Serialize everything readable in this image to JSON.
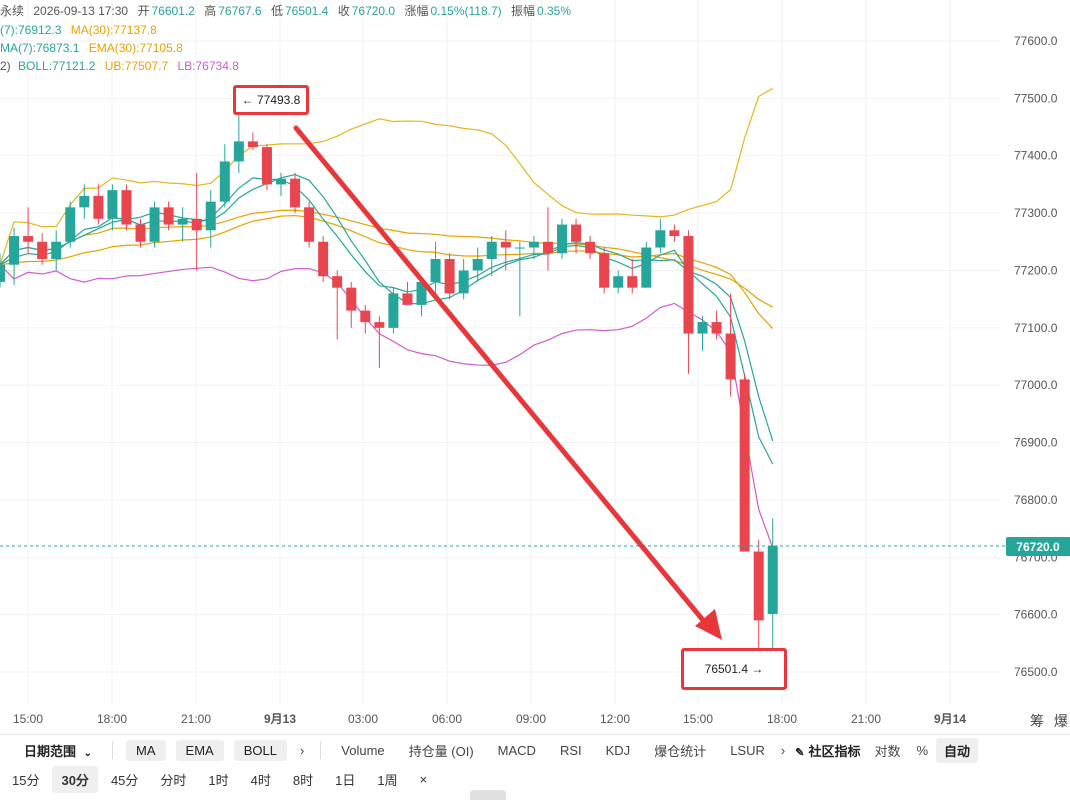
{
  "header": {
    "symbol_suffix": "永续",
    "datetime": "2026-09-13 17:30",
    "open_label": "开",
    "open": "76601.2",
    "high_label": "高",
    "high": "76767.6",
    "low_label": "低",
    "low": "76501.4",
    "close_label": "收",
    "close": "76720.0",
    "change_label": "涨幅",
    "change": "0.15%(118.7)",
    "amplitude_label": "振幅",
    "amplitude": "0.35%"
  },
  "indicators_row1": {
    "ma7": "(7):76912.3",
    "ma30": "MA(30):77137.8"
  },
  "indicators_row2": {
    "ema7": "MA(7):76873.1",
    "ema30": "EMA(30):77105.8"
  },
  "indicators_row3": {
    "prefix": "2)",
    "boll": "BOLL:77121.2",
    "ub": "UB:77507.7",
    "lb": "LB:76734.8"
  },
  "colors": {
    "up": "#26a69a",
    "down": "#e8454f",
    "ma7": "#26a69a",
    "ma30": "#e8a100",
    "boll_band": "#e6b41e",
    "lb": "#d05ad0",
    "annotation": "#e8373a"
  },
  "price_axis": [
    "77600.0",
    "77500.0",
    "77400.0",
    "77300.0",
    "77200.0",
    "77100.0",
    "77000.0",
    "76900.0",
    "76800.0",
    "76700.0",
    "76600.0",
    "76500.0"
  ],
  "current_price": "76720.0",
  "time_axis": [
    "15:00",
    "18:00",
    "21:00",
    "9月13",
    "03:00",
    "06:00",
    "09:00",
    "12:00",
    "15:00",
    "18:00",
    "21:00",
    "9月14"
  ],
  "right_corner": [
    "筹",
    "爆"
  ],
  "annotations": {
    "high_marker": "← 77493.8",
    "low_marker": "76501.4 →"
  },
  "toolbar": {
    "date_range": "日期范围",
    "pills": [
      "MA",
      "EMA",
      "BOLL"
    ],
    "more": "›",
    "items": [
      "Volume",
      "持仓量 (OI)",
      "MACD",
      "RSI",
      "KDJ",
      "爆仓统计",
      "LSUR"
    ],
    "more2": "›",
    "community": "社区指标",
    "log": "对数",
    "percent": "%",
    "auto": "自动"
  },
  "intervals": [
    "15分",
    "30分",
    "45分",
    "分时",
    "1时",
    "4时",
    "8时",
    "1日",
    "1周"
  ],
  "active_interval": "30分",
  "close_symbol": "×",
  "chart_data": {
    "type": "candlestick",
    "ylim": [
      76450,
      77650
    ],
    "candles": [
      {
        "o": 77180,
        "h": 77230,
        "l": 77170,
        "c": 77210
      },
      {
        "o": 77210,
        "h": 77275,
        "l": 77175,
        "c": 77260
      },
      {
        "o": 77260,
        "h": 77310,
        "l": 77230,
        "c": 77250
      },
      {
        "o": 77250,
        "h": 77265,
        "l": 77210,
        "c": 77220
      },
      {
        "o": 77220,
        "h": 77270,
        "l": 77200,
        "c": 77250
      },
      {
        "o": 77250,
        "h": 77320,
        "l": 77240,
        "c": 77310
      },
      {
        "o": 77310,
        "h": 77350,
        "l": 77290,
        "c": 77330
      },
      {
        "o": 77330,
        "h": 77350,
        "l": 77280,
        "c": 77290
      },
      {
        "o": 77290,
        "h": 77350,
        "l": 77270,
        "c": 77340
      },
      {
        "o": 77340,
        "h": 77350,
        "l": 77270,
        "c": 77280
      },
      {
        "o": 77280,
        "h": 77290,
        "l": 77240,
        "c": 77250
      },
      {
        "o": 77250,
        "h": 77320,
        "l": 77240,
        "c": 77310
      },
      {
        "o": 77310,
        "h": 77320,
        "l": 77270,
        "c": 77280
      },
      {
        "o": 77280,
        "h": 77310,
        "l": 77250,
        "c": 77290
      },
      {
        "o": 77290,
        "h": 77370,
        "l": 77200,
        "c": 77270
      },
      {
        "o": 77270,
        "h": 77340,
        "l": 77240,
        "c": 77320
      },
      {
        "o": 77320,
        "h": 77420,
        "l": 77310,
        "c": 77390
      },
      {
        "o": 77390,
        "h": 77493.8,
        "l": 77370,
        "c": 77425
      },
      {
        "o": 77425,
        "h": 77440,
        "l": 77410,
        "c": 77415
      },
      {
        "o": 77415,
        "h": 77420,
        "l": 77340,
        "c": 77350
      },
      {
        "o": 77350,
        "h": 77370,
        "l": 77330,
        "c": 77360
      },
      {
        "o": 77360,
        "h": 77370,
        "l": 77300,
        "c": 77310
      },
      {
        "o": 77310,
        "h": 77320,
        "l": 77240,
        "c": 77250
      },
      {
        "o": 77250,
        "h": 77260,
        "l": 77180,
        "c": 77190
      },
      {
        "o": 77190,
        "h": 77200,
        "l": 77080,
        "c": 77170
      },
      {
        "o": 77170,
        "h": 77180,
        "l": 77100,
        "c": 77130
      },
      {
        "o": 77130,
        "h": 77140,
        "l": 77090,
        "c": 77110
      },
      {
        "o": 77110,
        "h": 77120,
        "l": 77030,
        "c": 77100
      },
      {
        "o": 77100,
        "h": 77170,
        "l": 77090,
        "c": 77160
      },
      {
        "o": 77160,
        "h": 77180,
        "l": 77140,
        "c": 77140
      },
      {
        "o": 77140,
        "h": 77190,
        "l": 77120,
        "c": 77180
      },
      {
        "o": 77180,
        "h": 77250,
        "l": 77150,
        "c": 77220
      },
      {
        "o": 77220,
        "h": 77230,
        "l": 77150,
        "c": 77160
      },
      {
        "o": 77160,
        "h": 77220,
        "l": 77150,
        "c": 77200
      },
      {
        "o": 77200,
        "h": 77240,
        "l": 77180,
        "c": 77220
      },
      {
        "o": 77220,
        "h": 77260,
        "l": 77190,
        "c": 77250
      },
      {
        "o": 77250,
        "h": 77270,
        "l": 77200,
        "c": 77240
      },
      {
        "o": 77240,
        "h": 77250,
        "l": 77120,
        "c": 77240
      },
      {
        "o": 77240,
        "h": 77260,
        "l": 77220,
        "c": 77250
      },
      {
        "o": 77250,
        "h": 77310,
        "l": 77200,
        "c": 77230
      },
      {
        "o": 77230,
        "h": 77290,
        "l": 77220,
        "c": 77280
      },
      {
        "o": 77280,
        "h": 77290,
        "l": 77230,
        "c": 77250
      },
      {
        "o": 77250,
        "h": 77260,
        "l": 77220,
        "c": 77230
      },
      {
        "o": 77230,
        "h": 77240,
        "l": 77160,
        "c": 77170
      },
      {
        "o": 77170,
        "h": 77200,
        "l": 77160,
        "c": 77190
      },
      {
        "o": 77190,
        "h": 77220,
        "l": 77160,
        "c": 77170
      },
      {
        "o": 77170,
        "h": 77250,
        "l": 77170,
        "c": 77240
      },
      {
        "o": 77240,
        "h": 77290,
        "l": 77230,
        "c": 77270
      },
      {
        "o": 77270,
        "h": 77280,
        "l": 77250,
        "c": 77260
      },
      {
        "o": 77260,
        "h": 77270,
        "l": 77020,
        "c": 77090
      },
      {
        "o": 77090,
        "h": 77120,
        "l": 77060,
        "c": 77110
      },
      {
        "o": 77110,
        "h": 77130,
        "l": 77080,
        "c": 77090
      },
      {
        "o": 77090,
        "h": 77160,
        "l": 76980,
        "c": 77010
      },
      {
        "o": 77010,
        "h": 77020,
        "l": 76710,
        "c": 76710
      },
      {
        "o": 76710,
        "h": 76730,
        "l": 76501.4,
        "c": 76590
      },
      {
        "o": 76601.2,
        "h": 76767.6,
        "l": 76501.4,
        "c": 76720
      }
    ]
  }
}
